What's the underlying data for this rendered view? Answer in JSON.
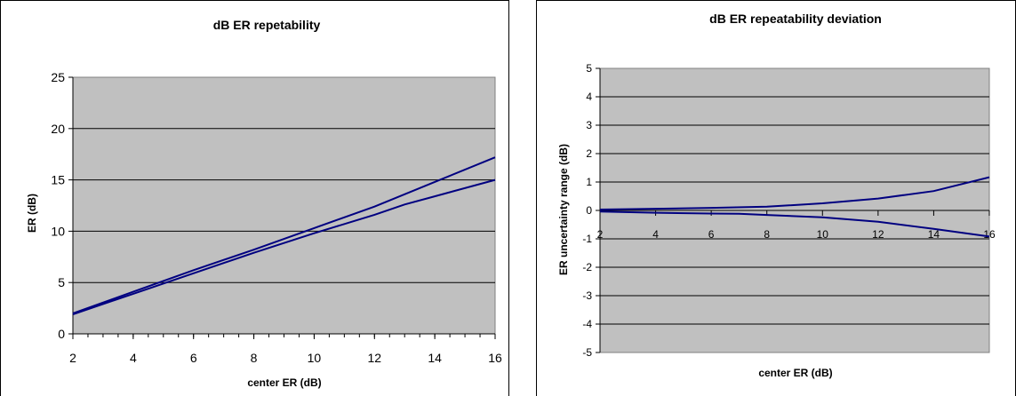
{
  "chart_data": [
    {
      "type": "line",
      "title": "dB ER repetability",
      "xlabel": "center ER (dB)",
      "ylabel": "ER (dB)",
      "xlim": [
        2,
        16
      ],
      "ylim": [
        0,
        25
      ],
      "x_ticks": [
        2,
        4,
        6,
        8,
        10,
        12,
        14,
        16
      ],
      "y_ticks": [
        0,
        5,
        10,
        15,
        20,
        25
      ],
      "grid": "horizontal",
      "legend": "none",
      "plot_background": "#c0c0c0",
      "line_color": "#000080",
      "series": [
        {
          "x": [
            2,
            4,
            6,
            8,
            10,
            12,
            14,
            16
          ],
          "values": [
            2.0,
            4.1,
            6.2,
            8.2,
            10.3,
            12.4,
            14.8,
            17.2
          ]
        },
        {
          "x": [
            2,
            4,
            6,
            8,
            10,
            12,
            13,
            14,
            16
          ],
          "values": [
            1.9,
            3.9,
            5.9,
            7.9,
            9.8,
            11.6,
            12.6,
            13.4,
            15.0
          ]
        }
      ]
    },
    {
      "type": "line",
      "title": "dB ER repeatability deviation",
      "xlabel": "center ER (dB)",
      "ylabel": "ER uncertainty range (dB)",
      "xlim": [
        2,
        16
      ],
      "ylim": [
        -5,
        5
      ],
      "x_ticks": [
        2,
        4,
        6,
        8,
        10,
        12,
        14,
        16
      ],
      "y_ticks": [
        -5,
        -4,
        -3,
        -2,
        -1,
        0,
        1,
        2,
        3,
        4,
        5
      ],
      "grid": "horizontal",
      "legend": "none",
      "plot_background": "#c0c0c0",
      "line_color": "#000080",
      "series": [
        {
          "x": [
            2,
            4,
            6,
            8,
            10,
            12,
            14,
            16
          ],
          "values": [
            0.03,
            0.06,
            0.09,
            0.13,
            0.25,
            0.42,
            0.68,
            1.17
          ]
        },
        {
          "x": [
            2,
            4,
            6,
            7,
            8,
            10,
            12,
            14,
            16
          ],
          "values": [
            -0.04,
            -0.08,
            -0.11,
            -0.12,
            -0.16,
            -0.24,
            -0.4,
            -0.65,
            -0.92
          ]
        }
      ]
    }
  ]
}
